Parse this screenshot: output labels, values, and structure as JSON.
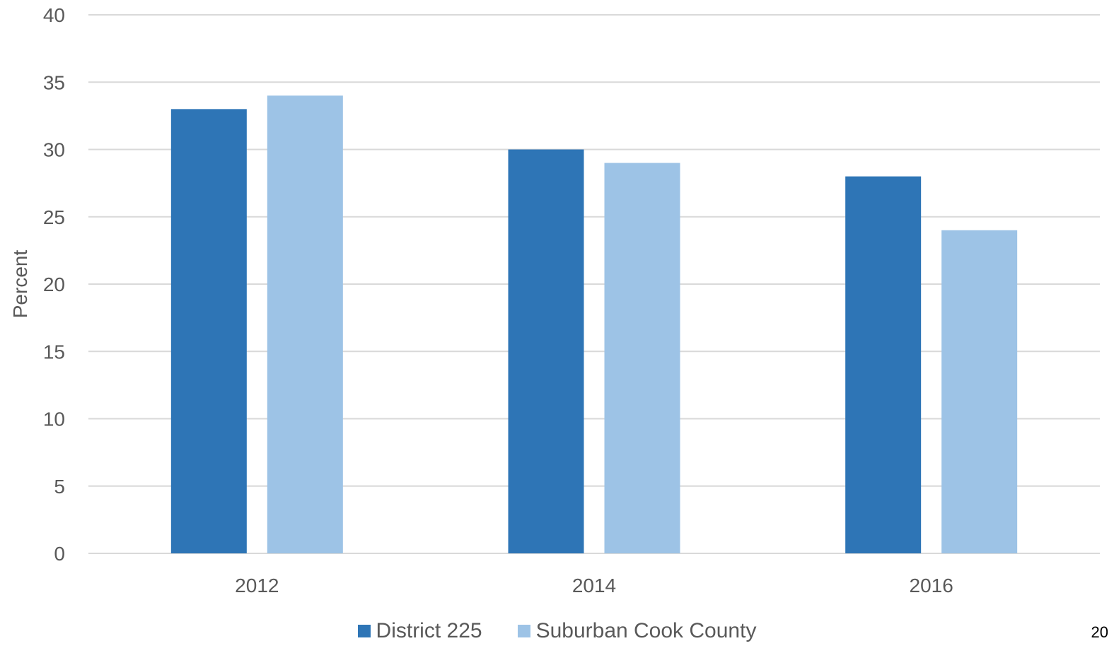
{
  "chart_data": {
    "type": "bar",
    "categories": [
      "2012",
      "2014",
      "2016"
    ],
    "series": [
      {
        "name": "District 225",
        "values": [
          33,
          30,
          28
        ],
        "color": "#2e75b6"
      },
      {
        "name": "Suburban Cook County",
        "values": [
          34,
          29,
          24
        ],
        "color": "#9dc3e6"
      }
    ],
    "title": "",
    "xlabel": "",
    "ylabel": "Percent",
    "ylim": [
      0,
      40
    ],
    "yticks": [
      0,
      5,
      10,
      15,
      20,
      25,
      30,
      35,
      40
    ],
    "grid": true,
    "legend_position": "bottom"
  },
  "colors": {
    "gridline": "#d9d9d9",
    "text": "#595959"
  },
  "page_number": "20"
}
